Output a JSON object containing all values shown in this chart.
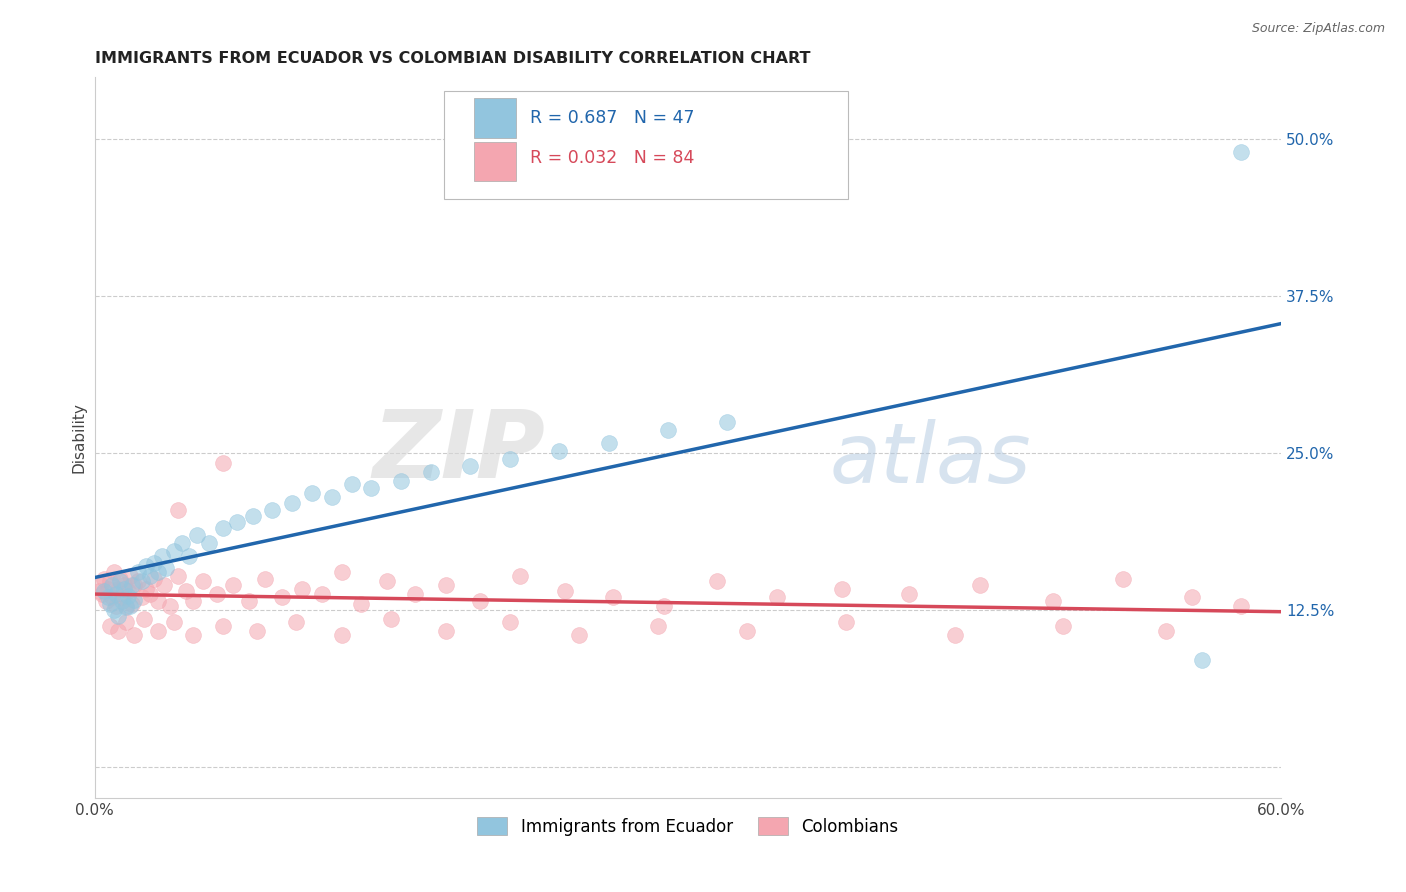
{
  "title": "IMMIGRANTS FROM ECUADOR VS COLOMBIAN DISABILITY CORRELATION CHART",
  "source": "Source: ZipAtlas.com",
  "ylabel": "Disability",
  "xlim": [
    0.0,
    0.6
  ],
  "ylim": [
    -0.025,
    0.55
  ],
  "xticks": [
    0.0,
    0.1,
    0.2,
    0.3,
    0.4,
    0.5,
    0.6
  ],
  "xticklabels": [
    "0.0%",
    "",
    "",
    "",
    "",
    "",
    "60.0%"
  ],
  "ytick_positions": [
    0.0,
    0.125,
    0.25,
    0.375,
    0.5
  ],
  "ytick_labels": [
    "",
    "12.5%",
    "25.0%",
    "37.5%",
    "50.0%"
  ],
  "watermark_zip": "ZIP",
  "watermark_atlas": "atlas",
  "color_blue": "#92c5de",
  "color_pink": "#f4a6b0",
  "line_blue": "#2166ac",
  "line_pink": "#d6495a",
  "background": "#ffffff",
  "grid_color": "#cccccc",
  "ecuador_x": [
    0.005,
    0.007,
    0.008,
    0.009,
    0.01,
    0.011,
    0.012,
    0.013,
    0.014,
    0.015,
    0.016,
    0.017,
    0.018,
    0.019,
    0.02,
    0.022,
    0.024,
    0.026,
    0.028,
    0.03,
    0.032,
    0.034,
    0.036,
    0.04,
    0.044,
    0.048,
    0.052,
    0.058,
    0.065,
    0.072,
    0.08,
    0.09,
    0.1,
    0.11,
    0.12,
    0.13,
    0.14,
    0.155,
    0.17,
    0.19,
    0.21,
    0.235,
    0.26,
    0.29,
    0.32,
    0.56,
    0.58
  ],
  "ecuador_y": [
    0.14,
    0.135,
    0.13,
    0.145,
    0.125,
    0.138,
    0.12,
    0.148,
    0.132,
    0.142,
    0.127,
    0.136,
    0.128,
    0.145,
    0.133,
    0.155,
    0.148,
    0.16,
    0.152,
    0.162,
    0.155,
    0.168,
    0.158,
    0.172,
    0.178,
    0.168,
    0.185,
    0.178,
    0.19,
    0.195,
    0.2,
    0.205,
    0.21,
    0.218,
    0.215,
    0.225,
    0.222,
    0.228,
    0.235,
    0.24,
    0.245,
    0.252,
    0.258,
    0.268,
    0.275,
    0.085,
    0.49
  ],
  "colombian_x": [
    0.002,
    0.003,
    0.004,
    0.005,
    0.006,
    0.007,
    0.008,
    0.009,
    0.01,
    0.011,
    0.012,
    0.013,
    0.014,
    0.015,
    0.016,
    0.017,
    0.018,
    0.019,
    0.02,
    0.022,
    0.024,
    0.026,
    0.028,
    0.03,
    0.032,
    0.035,
    0.038,
    0.042,
    0.046,
    0.05,
    0.055,
    0.062,
    0.07,
    0.078,
    0.086,
    0.095,
    0.105,
    0.115,
    0.125,
    0.135,
    0.148,
    0.162,
    0.178,
    0.195,
    0.215,
    0.238,
    0.262,
    0.288,
    0.315,
    0.345,
    0.378,
    0.412,
    0.448,
    0.485,
    0.52,
    0.555,
    0.58,
    0.008,
    0.012,
    0.016,
    0.02,
    0.025,
    0.032,
    0.04,
    0.05,
    0.065,
    0.082,
    0.102,
    0.125,
    0.15,
    0.178,
    0.21,
    0.245,
    0.285,
    0.33,
    0.38,
    0.435,
    0.49,
    0.542,
    0.042,
    0.065
  ],
  "colombian_y": [
    0.14,
    0.145,
    0.138,
    0.15,
    0.132,
    0.142,
    0.148,
    0.135,
    0.155,
    0.128,
    0.142,
    0.15,
    0.135,
    0.145,
    0.128,
    0.14,
    0.152,
    0.13,
    0.145,
    0.148,
    0.135,
    0.142,
    0.138,
    0.15,
    0.132,
    0.145,
    0.128,
    0.152,
    0.14,
    0.132,
    0.148,
    0.138,
    0.145,
    0.132,
    0.15,
    0.135,
    0.142,
    0.138,
    0.155,
    0.13,
    0.148,
    0.138,
    0.145,
    0.132,
    0.152,
    0.14,
    0.135,
    0.128,
    0.148,
    0.135,
    0.142,
    0.138,
    0.145,
    0.132,
    0.15,
    0.135,
    0.128,
    0.112,
    0.108,
    0.115,
    0.105,
    0.118,
    0.108,
    0.115,
    0.105,
    0.112,
    0.108,
    0.115,
    0.105,
    0.118,
    0.108,
    0.115,
    0.105,
    0.112,
    0.108,
    0.115,
    0.105,
    0.112,
    0.108,
    0.205,
    0.242
  ]
}
